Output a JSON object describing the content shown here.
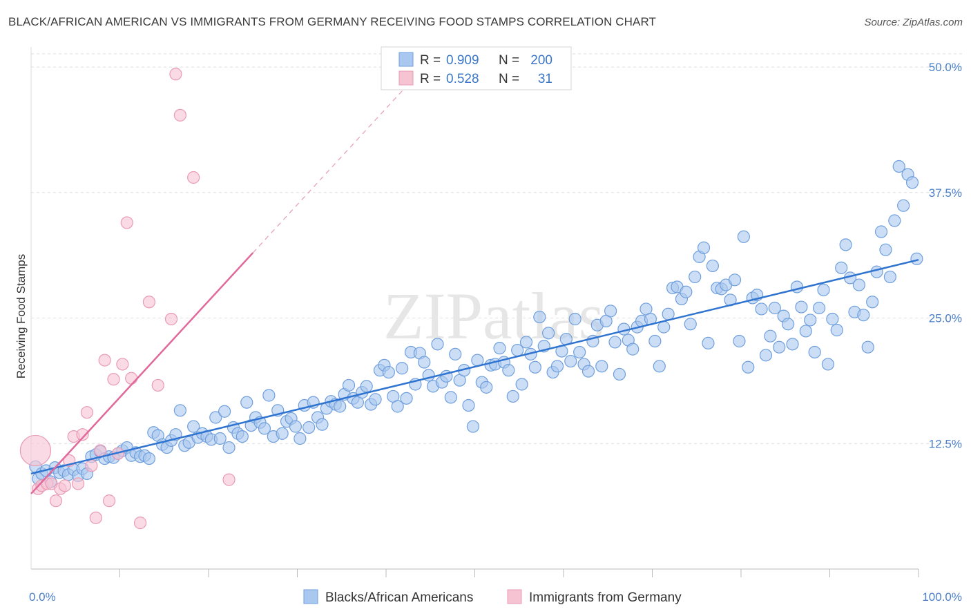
{
  "title": "BLACK/AFRICAN AMERICAN VS IMMIGRANTS FROM GERMANY RECEIVING FOOD STAMPS CORRELATION CHART",
  "source": "Source: ZipAtlas.com",
  "watermark": "ZIPatlas",
  "colors": {
    "blue_fill": "#aac8ef",
    "blue_stroke": "#6f9fdd",
    "blue_line": "#2f74d0",
    "pink_fill": "#f6c3d3",
    "pink_stroke": "#e99ab4",
    "pink_line": "#e0689a",
    "grid": "#dddddd",
    "tick_text": "#4a7fc9"
  },
  "legend": {
    "r_label": "R =",
    "n_label": "N =",
    "series1": {
      "r": "0.909",
      "n": "200"
    },
    "series2": {
      "r": "0.528",
      "n": "31"
    }
  },
  "chart_data": {
    "type": "scatter",
    "title": "BLACK/AFRICAN AMERICAN VS IMMIGRANTS FROM GERMANY RECEIVING FOOD STAMPS CORRELATION CHART",
    "xlabel": "",
    "ylabel": "Receiving Food Stamps",
    "xlim": [
      0,
      100
    ],
    "ylim": [
      0,
      52
    ],
    "x_tick_labels": [
      "0.0%",
      "100.0%"
    ],
    "y_ticks": [
      12.5,
      25.0,
      37.5,
      50.0
    ],
    "y_tick_labels": [
      "12.5%",
      "25.0%",
      "37.5%",
      "50.0%"
    ],
    "legend_position": "top-center",
    "series": [
      {
        "name": "Blacks/African Americans",
        "trend": {
          "x": [
            0,
            100
          ],
          "y": [
            9.5,
            30.8
          ]
        },
        "points": [
          [
            0.5,
            10.2
          ],
          [
            0.8,
            9.0
          ],
          [
            1.2,
            9.5
          ],
          [
            1.7,
            9.8
          ],
          [
            2.2,
            8.7
          ],
          [
            2.7,
            10.1
          ],
          [
            3.2,
            9.6
          ],
          [
            3.7,
            9.8
          ],
          [
            4.2,
            9.4
          ],
          [
            4.8,
            9.9
          ],
          [
            5.3,
            9.3
          ],
          [
            5.8,
            10.0
          ],
          [
            6.3,
            9.5
          ],
          [
            6.8,
            11.2
          ],
          [
            7.3,
            11.4
          ],
          [
            7.8,
            11.7
          ],
          [
            8.3,
            11.0
          ],
          [
            8.8,
            11.2
          ],
          [
            9.3,
            11.1
          ],
          [
            9.8,
            11.5
          ],
          [
            10.3,
            11.8
          ],
          [
            10.8,
            12.1
          ],
          [
            11.3,
            11.3
          ],
          [
            11.8,
            11.6
          ],
          [
            12.3,
            11.2
          ],
          [
            12.8,
            11.3
          ],
          [
            13.3,
            11.0
          ],
          [
            13.8,
            13.6
          ],
          [
            14.3,
            13.3
          ],
          [
            14.8,
            12.4
          ],
          [
            15.3,
            12.1
          ],
          [
            15.8,
            12.8
          ],
          [
            16.3,
            13.4
          ],
          [
            16.8,
            15.8
          ],
          [
            17.3,
            12.3
          ],
          [
            17.8,
            12.6
          ],
          [
            18.3,
            14.2
          ],
          [
            18.8,
            13.1
          ],
          [
            19.3,
            13.5
          ],
          [
            19.8,
            13.2
          ],
          [
            20.3,
            12.9
          ],
          [
            20.8,
            15.1
          ],
          [
            21.3,
            13.0
          ],
          [
            21.8,
            15.7
          ],
          [
            22.3,
            12.1
          ],
          [
            22.8,
            14.1
          ],
          [
            23.3,
            13.5
          ],
          [
            23.8,
            13.2
          ],
          [
            24.3,
            16.6
          ],
          [
            24.8,
            14.3
          ],
          [
            25.3,
            15.1
          ],
          [
            25.8,
            14.6
          ],
          [
            26.3,
            14.0
          ],
          [
            26.8,
            17.3
          ],
          [
            27.3,
            13.2
          ],
          [
            27.8,
            15.8
          ],
          [
            28.3,
            13.5
          ],
          [
            28.8,
            14.7
          ],
          [
            29.3,
            15.0
          ],
          [
            29.8,
            14.2
          ],
          [
            30.3,
            13.0
          ],
          [
            30.8,
            16.3
          ],
          [
            31.3,
            14.1
          ],
          [
            31.8,
            16.6
          ],
          [
            32.3,
            15.1
          ],
          [
            32.8,
            14.4
          ],
          [
            33.3,
            16.0
          ],
          [
            33.8,
            16.7
          ],
          [
            34.3,
            16.4
          ],
          [
            34.8,
            16.2
          ],
          [
            35.3,
            17.4
          ],
          [
            35.8,
            18.3
          ],
          [
            36.3,
            17.0
          ],
          [
            36.8,
            16.6
          ],
          [
            37.3,
            17.6
          ],
          [
            37.8,
            18.2
          ],
          [
            38.3,
            16.4
          ],
          [
            38.8,
            16.9
          ],
          [
            39.3,
            19.8
          ],
          [
            39.8,
            20.3
          ],
          [
            40.3,
            19.6
          ],
          [
            40.8,
            17.2
          ],
          [
            41.3,
            16.2
          ],
          [
            41.8,
            20.0
          ],
          [
            42.3,
            17.0
          ],
          [
            42.8,
            21.6
          ],
          [
            43.3,
            18.4
          ],
          [
            43.8,
            21.5
          ],
          [
            44.3,
            20.6
          ],
          [
            44.8,
            19.3
          ],
          [
            45.3,
            18.2
          ],
          [
            45.8,
            22.4
          ],
          [
            46.3,
            18.6
          ],
          [
            46.8,
            19.2
          ],
          [
            47.3,
            17.1
          ],
          [
            47.8,
            21.4
          ],
          [
            48.3,
            18.8
          ],
          [
            48.8,
            19.8
          ],
          [
            49.3,
            16.3
          ],
          [
            49.8,
            14.2
          ],
          [
            50.3,
            20.8
          ],
          [
            50.8,
            18.6
          ],
          [
            51.3,
            18.1
          ],
          [
            51.8,
            20.3
          ],
          [
            52.3,
            20.4
          ],
          [
            52.8,
            22.0
          ],
          [
            53.3,
            20.6
          ],
          [
            53.8,
            19.8
          ],
          [
            54.3,
            17.2
          ],
          [
            54.8,
            21.8
          ],
          [
            55.3,
            18.4
          ],
          [
            55.8,
            22.6
          ],
          [
            56.3,
            21.4
          ],
          [
            56.8,
            20.1
          ],
          [
            57.3,
            25.1
          ],
          [
            57.8,
            22.2
          ],
          [
            58.3,
            23.5
          ],
          [
            58.8,
            19.6
          ],
          [
            59.3,
            20.2
          ],
          [
            59.8,
            21.7
          ],
          [
            60.3,
            22.9
          ],
          [
            60.8,
            20.7
          ],
          [
            61.3,
            24.9
          ],
          [
            61.8,
            21.6
          ],
          [
            62.3,
            20.4
          ],
          [
            62.8,
            19.7
          ],
          [
            63.3,
            22.7
          ],
          [
            63.8,
            24.3
          ],
          [
            64.3,
            20.2
          ],
          [
            64.8,
            24.7
          ],
          [
            65.3,
            25.7
          ],
          [
            65.8,
            22.6
          ],
          [
            66.3,
            19.4
          ],
          [
            66.8,
            23.9
          ],
          [
            67.3,
            22.8
          ],
          [
            67.8,
            21.9
          ],
          [
            68.3,
            24.1
          ],
          [
            68.8,
            24.7
          ],
          [
            69.3,
            25.9
          ],
          [
            69.8,
            24.9
          ],
          [
            70.3,
            22.7
          ],
          [
            70.8,
            20.2
          ],
          [
            71.3,
            24.1
          ],
          [
            71.8,
            25.4
          ],
          [
            72.3,
            28.0
          ],
          [
            72.8,
            28.1
          ],
          [
            73.3,
            26.9
          ],
          [
            73.8,
            27.6
          ],
          [
            74.3,
            24.4
          ],
          [
            74.8,
            29.1
          ],
          [
            75.3,
            31.1
          ],
          [
            75.8,
            32.0
          ],
          [
            76.3,
            22.5
          ],
          [
            76.8,
            30.2
          ],
          [
            77.3,
            28.0
          ],
          [
            77.8,
            27.9
          ],
          [
            78.3,
            28.3
          ],
          [
            78.8,
            26.8
          ],
          [
            79.3,
            28.8
          ],
          [
            79.8,
            22.7
          ],
          [
            80.3,
            33.1
          ],
          [
            80.8,
            20.1
          ],
          [
            81.3,
            27.0
          ],
          [
            81.8,
            27.3
          ],
          [
            82.3,
            25.9
          ],
          [
            82.8,
            21.3
          ],
          [
            83.3,
            23.2
          ],
          [
            83.8,
            26.0
          ],
          [
            84.3,
            22.1
          ],
          [
            84.8,
            25.2
          ],
          [
            85.3,
            24.4
          ],
          [
            85.8,
            22.4
          ],
          [
            86.3,
            28.1
          ],
          [
            86.8,
            26.1
          ],
          [
            87.3,
            23.7
          ],
          [
            87.8,
            24.8
          ],
          [
            88.3,
            21.6
          ],
          [
            88.8,
            26.0
          ],
          [
            89.3,
            27.8
          ],
          [
            89.8,
            20.4
          ],
          [
            90.3,
            24.9
          ],
          [
            90.8,
            23.8
          ],
          [
            91.3,
            30.0
          ],
          [
            91.8,
            32.3
          ],
          [
            92.3,
            29.0
          ],
          [
            92.8,
            25.6
          ],
          [
            93.3,
            28.3
          ],
          [
            93.8,
            25.3
          ],
          [
            94.3,
            22.1
          ],
          [
            94.8,
            26.6
          ],
          [
            95.3,
            29.6
          ],
          [
            95.8,
            33.6
          ],
          [
            96.3,
            31.8
          ],
          [
            96.8,
            29.1
          ],
          [
            97.3,
            34.7
          ],
          [
            97.8,
            40.1
          ],
          [
            98.3,
            36.2
          ],
          [
            98.8,
            39.3
          ],
          [
            99.3,
            38.5
          ],
          [
            99.8,
            30.9
          ]
        ]
      },
      {
        "name": "Immigrants from Germany",
        "trend": {
          "x": [
            0,
            25
          ],
          "y": [
            7.5,
            31.5
          ]
        },
        "trend_extension": {
          "x": [
            25,
            42
          ],
          "y": [
            31.5,
            47.8
          ]
        },
        "points": [
          [
            0.5,
            11.8
          ],
          [
            0.8,
            8.0
          ],
          [
            1.2,
            8.3
          ],
          [
            1.8,
            8.5
          ],
          [
            2.3,
            8.5
          ],
          [
            2.8,
            6.8
          ],
          [
            3.3,
            8.0
          ],
          [
            3.8,
            8.3
          ],
          [
            4.3,
            10.8
          ],
          [
            4.8,
            13.2
          ],
          [
            5.3,
            8.5
          ],
          [
            5.8,
            13.4
          ],
          [
            6.3,
            15.6
          ],
          [
            6.8,
            10.3
          ],
          [
            7.3,
            5.1
          ],
          [
            7.8,
            11.8
          ],
          [
            8.3,
            20.8
          ],
          [
            8.8,
            6.8
          ],
          [
            9.3,
            18.9
          ],
          [
            9.8,
            11.5
          ],
          [
            10.3,
            20.4
          ],
          [
            10.8,
            34.5
          ],
          [
            11.3,
            19.0
          ],
          [
            12.3,
            4.6
          ],
          [
            13.3,
            26.6
          ],
          [
            14.3,
            18.3
          ],
          [
            15.8,
            24.9
          ],
          [
            16.3,
            49.3
          ],
          [
            16.8,
            45.2
          ],
          [
            18.3,
            39.0
          ],
          [
            22.3,
            8.9
          ]
        ]
      }
    ]
  },
  "bottom_legend": {
    "item1": "Blacks/African Americans",
    "item2": "Immigrants from Germany"
  }
}
